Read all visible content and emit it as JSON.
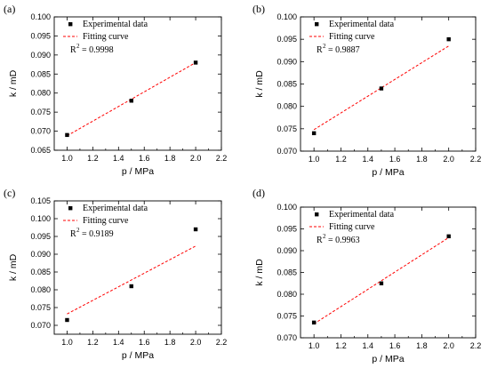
{
  "chart_data": [
    {
      "type": "scatter",
      "panel_label": "(a)",
      "xlabel": "p / MPa",
      "ylabel": "k / mD",
      "xlim": [
        0.9,
        2.2
      ],
      "ylim": [
        0.065,
        0.1
      ],
      "xticks": [
        "1.0",
        "1.2",
        "1.4",
        "1.6",
        "1.8",
        "2.0",
        "2.2"
      ],
      "yticks": [
        "0.065",
        "0.070",
        "0.075",
        "0.080",
        "0.085",
        "0.090",
        "0.095",
        "0.100"
      ],
      "legend": {
        "scatter_label": "Experimental data",
        "fit_label": "Fitting curve",
        "r2_text": "= 0.9998",
        "placement": "top-left"
      },
      "series": [
        {
          "kind": "scatter",
          "x": [
            1.0,
            1.5,
            2.0
          ],
          "y": [
            0.069,
            0.078,
            0.088
          ]
        },
        {
          "kind": "line",
          "x": [
            1.0,
            2.0
          ],
          "y": [
            0.0688,
            0.088
          ]
        }
      ],
      "colors": {
        "scatter": "#000000",
        "fit": "#ff0000"
      }
    },
    {
      "type": "scatter",
      "panel_label": "(b)",
      "xlabel": "p / MPa",
      "ylabel": "k / mD",
      "xlim": [
        0.9,
        2.2
      ],
      "ylim": [
        0.07,
        0.1
      ],
      "xticks": [
        "1.0",
        "1.2",
        "1.4",
        "1.6",
        "1.8",
        "2.0",
        "2.2"
      ],
      "yticks": [
        "0.070",
        "0.075",
        "0.080",
        "0.085",
        "0.090",
        "0.095",
        "0.100"
      ],
      "legend": {
        "scatter_label": "Experimental data",
        "fit_label": "Fitting curve",
        "r2_text": "= 0.9887",
        "placement": "top-left"
      },
      "series": [
        {
          "kind": "scatter",
          "x": [
            1.0,
            1.5,
            2.0
          ],
          "y": [
            0.074,
            0.084,
            0.095
          ]
        },
        {
          "kind": "line",
          "x": [
            1.0,
            2.0
          ],
          "y": [
            0.0748,
            0.0935
          ]
        }
      ],
      "colors": {
        "scatter": "#000000",
        "fit": "#ff0000"
      }
    },
    {
      "type": "scatter",
      "panel_label": "(c)",
      "xlabel": "p / MPa",
      "ylabel": "k / mD",
      "xlim": [
        0.9,
        2.2
      ],
      "ylim": [
        0.0675,
        0.105
      ],
      "xticks": [
        "1.0",
        "1.2",
        "1.4",
        "1.6",
        "1.8",
        "2.0",
        "2.2"
      ],
      "yticks": [
        "0.070",
        "0.075",
        "0.080",
        "0.085",
        "0.090",
        "0.095",
        "0.100",
        "0.105"
      ],
      "legend": {
        "scatter_label": "Experimental data",
        "fit_label": "Fitting curve",
        "r2_text": "= 0.9189",
        "placement": "top-left"
      },
      "series": [
        {
          "kind": "scatter",
          "x": [
            1.0,
            1.5,
            2.0
          ],
          "y": [
            0.0715,
            0.081,
            0.097
          ]
        },
        {
          "kind": "line",
          "x": [
            1.0,
            2.0
          ],
          "y": [
            0.0732,
            0.0923
          ]
        }
      ],
      "colors": {
        "scatter": "#000000",
        "fit": "#ff0000"
      }
    },
    {
      "type": "scatter",
      "panel_label": "(d)",
      "xlabel": "p / MPa",
      "ylabel": "k / mD",
      "xlim": [
        0.9,
        2.2
      ],
      "ylim": [
        0.07,
        0.1
      ],
      "xticks": [
        "1.0",
        "1.2",
        "1.4",
        "1.6",
        "1.8",
        "2.0",
        "2.2"
      ],
      "yticks": [
        "0.070",
        "0.075",
        "0.080",
        "0.085",
        "0.090",
        "0.095",
        "0.100"
      ],
      "legend": {
        "scatter_label": "Experimental data",
        "fit_label": "Fitting curve",
        "r2_text": "= 0.9963",
        "placement": "top-left"
      },
      "series": [
        {
          "kind": "scatter",
          "x": [
            1.0,
            1.5,
            2.0
          ],
          "y": [
            0.0735,
            0.0825,
            0.0933
          ]
        },
        {
          "kind": "line",
          "x": [
            1.0,
            2.0
          ],
          "y": [
            0.0732,
            0.093
          ]
        }
      ],
      "colors": {
        "scatter": "#000000",
        "fit": "#ff0000"
      }
    }
  ]
}
